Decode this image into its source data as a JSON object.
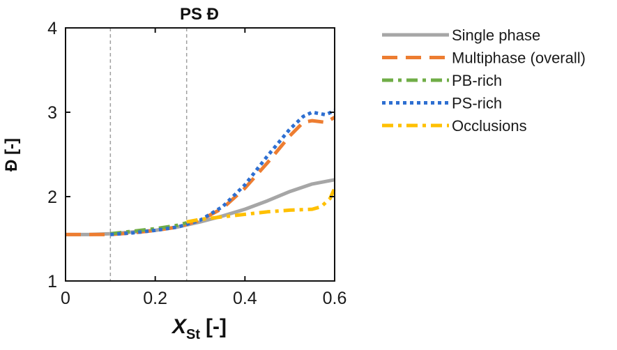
{
  "chart_data": {
    "type": "line",
    "title": "PS Đ",
    "xlabel": "X",
    "xlabel_subscript": "St",
    "xlabel_suffix": "[-]",
    "ylabel": "Đ [-]",
    "xlim": [
      0,
      0.6
    ],
    "ylim": [
      1,
      4
    ],
    "x_ticks": [
      "0",
      "0.2",
      "0.4",
      "0.6"
    ],
    "y_ticks": [
      "1",
      "2",
      "3",
      "4"
    ],
    "x_tick_values": [
      0,
      0.2,
      0.4,
      0.6
    ],
    "y_tick_values": [
      1,
      2,
      3,
      4
    ],
    "vertical_reference_lines": [
      0.1,
      0.27
    ],
    "grid": false,
    "legend_position": "outside-right",
    "series": [
      {
        "name": "Single phase",
        "color": "#a6a6a6",
        "style": "solid",
        "x": [
          0.0,
          0.05,
          0.1,
          0.15,
          0.2,
          0.25,
          0.3,
          0.35,
          0.4,
          0.45,
          0.5,
          0.55,
          0.6
        ],
        "y": [
          1.55,
          1.55,
          1.56,
          1.58,
          1.6,
          1.64,
          1.7,
          1.77,
          1.85,
          1.95,
          2.06,
          2.15,
          2.2
        ]
      },
      {
        "name": "Multiphase (overall)",
        "color": "#ed7d31",
        "style": "longdash",
        "x": [
          0.0,
          0.05,
          0.1,
          0.15,
          0.2,
          0.25,
          0.3,
          0.35,
          0.4,
          0.45,
          0.5,
          0.53,
          0.55,
          0.58,
          0.6
        ],
        "y": [
          1.55,
          1.55,
          1.55,
          1.57,
          1.6,
          1.64,
          1.72,
          1.86,
          2.1,
          2.4,
          2.72,
          2.88,
          2.9,
          2.88,
          2.94
        ]
      },
      {
        "name": "PB-rich",
        "color": "#70ad47",
        "style": "dashdot",
        "x": [
          0.1,
          0.15,
          0.2,
          0.25,
          0.27
        ],
        "y": [
          1.56,
          1.59,
          1.62,
          1.66,
          1.69
        ]
      },
      {
        "name": "PS-rich",
        "color": "#2e6fd1",
        "style": "dotted",
        "x": [
          0.1,
          0.15,
          0.2,
          0.25,
          0.3,
          0.35,
          0.4,
          0.45,
          0.5,
          0.53,
          0.55,
          0.58,
          0.6
        ],
        "y": [
          1.55,
          1.57,
          1.6,
          1.64,
          1.72,
          1.88,
          2.14,
          2.48,
          2.8,
          2.95,
          3.0,
          2.97,
          3.02
        ]
      },
      {
        "name": "Occlusions",
        "color": "#ffc000",
        "style": "dashdot",
        "x": [
          0.27,
          0.3,
          0.35,
          0.4,
          0.45,
          0.5,
          0.55,
          0.57,
          0.59,
          0.6
        ],
        "y": [
          1.7,
          1.73,
          1.76,
          1.79,
          1.82,
          1.84,
          1.85,
          1.88,
          1.98,
          2.1
        ]
      }
    ]
  }
}
